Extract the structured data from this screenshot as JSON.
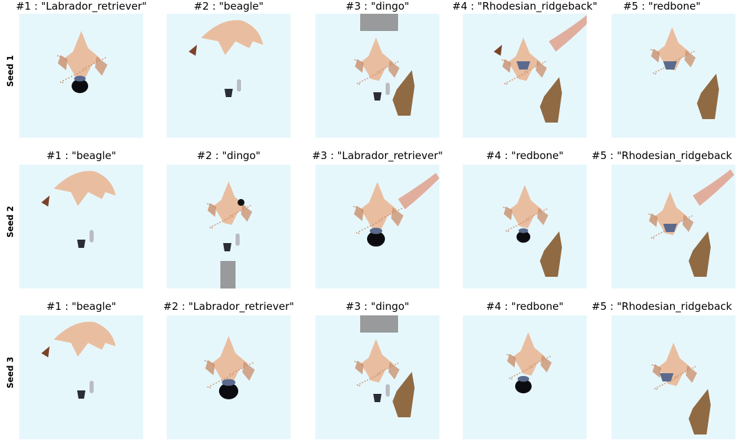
{
  "rows": [
    {
      "label": "Seed 1",
      "panels": [
        {
          "title": "#1 : \"Labrador_retriever\"",
          "variant": "lab"
        },
        {
          "title": "#2 : \"beagle\"",
          "variant": "beagle"
        },
        {
          "title": "#3 : \"dingo\"",
          "variant": "dingo"
        },
        {
          "title": "#4 : \"Rhodesian_ridgeback\"",
          "variant": "rhod"
        },
        {
          "title": "#5 : \"redbone\"",
          "variant": "redbone"
        }
      ]
    },
    {
      "label": "Seed 2",
      "panels": [
        {
          "title": "#1 : \"beagle\"",
          "variant": "beagle"
        },
        {
          "title": "#2 : \"dingo\"",
          "variant": "dingo2"
        },
        {
          "title": "#3 : \"Labrador_retriever\"",
          "variant": "lab2"
        },
        {
          "title": "#4 : \"redbone\"",
          "variant": "redbone2"
        },
        {
          "title": "#5 : \"Rhodesian_ridgeback",
          "variant": "rhod2"
        }
      ]
    },
    {
      "label": "Seed 3",
      "panels": [
        {
          "title": "#1 : \"beagle\"",
          "variant": "beagle"
        },
        {
          "title": "#2 : \"Labrador_retriever\"",
          "variant": "lab3"
        },
        {
          "title": "#3 : \"dingo\"",
          "variant": "dingo"
        },
        {
          "title": "#4 : \"redbone\"",
          "variant": "redbone3"
        },
        {
          "title": "#5 : \"Rhodesian_ridgeback",
          "variant": "rhod3"
        }
      ]
    }
  ],
  "colors": {
    "panel_background": "#e6f7fc",
    "fur_light": "#e9b796",
    "fur_mid": "#c98d6a",
    "ear_dark": "#7a4328",
    "nose_black": "#0c0c10",
    "nose_blue": "#5b6a8c",
    "leg_brown": "#8a6239",
    "grey": "#8c8c8c"
  }
}
